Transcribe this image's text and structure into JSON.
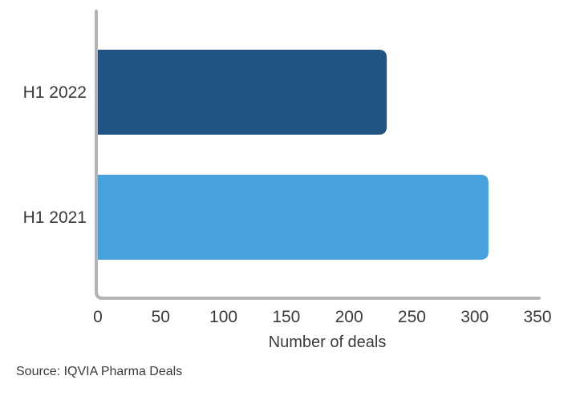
{
  "chart_data": {
    "type": "bar",
    "orientation": "horizontal",
    "categories": [
      "H1 2022",
      "H1 2021"
    ],
    "values": [
      230,
      311
    ],
    "colors": [
      "#215482",
      "#48a1db"
    ],
    "xlabel": "Number of deals",
    "xlim": [
      0,
      350
    ],
    "xticks": [
      "0",
      "50",
      "100",
      "150",
      "200",
      "250",
      "300",
      "350"
    ],
    "grid": false,
    "axis_color": "#b3b3b3",
    "text_color": "#3a3a3a"
  },
  "source": "Source: IQVIA Pharma Deals"
}
